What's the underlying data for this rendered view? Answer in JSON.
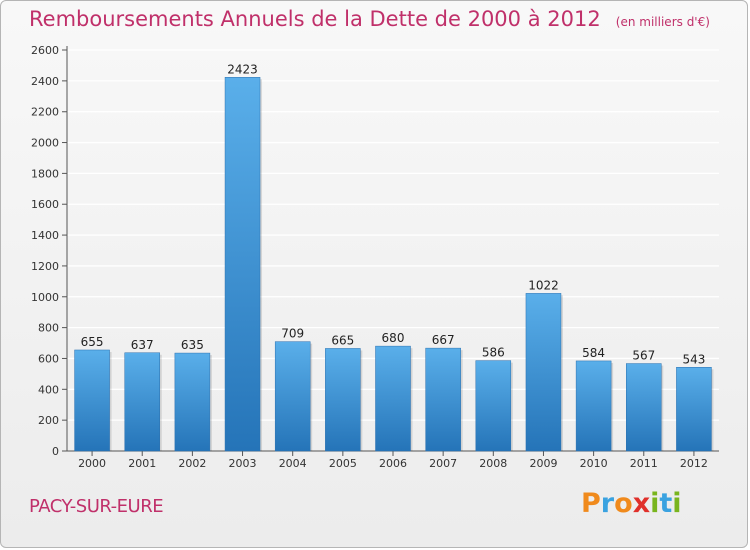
{
  "title": "Remboursements Annuels de la Dette de 2000 à 2012",
  "subtitle": "(en milliers d'€)",
  "commune": "PACY-SUR-EURE",
  "brand": {
    "letters": [
      "P",
      "r",
      "o",
      "x",
      "i",
      "t",
      "i"
    ],
    "colors": [
      "#f08a1c",
      "#3aa2e0",
      "#f08a1c",
      "#e0302a",
      "#79b51e",
      "#3aa2e0",
      "#79b51e"
    ]
  },
  "colors": {
    "bar_top": "#5aafea",
    "bar_bottom": "#2574b8",
    "title": "#c0306a",
    "grid": "#ffffff",
    "axis": "#555555"
  },
  "chart_data": {
    "type": "bar",
    "categories": [
      "2000",
      "2001",
      "2002",
      "2003",
      "2004",
      "2005",
      "2006",
      "2007",
      "2008",
      "2009",
      "2010",
      "2011",
      "2012"
    ],
    "values": [
      655,
      637,
      635,
      2423,
      709,
      665,
      680,
      667,
      586,
      1022,
      584,
      567,
      543
    ],
    "title": "Remboursements Annuels de la Dette de 2000 à 2012",
    "subtitle": "(en milliers d'€)",
    "xlabel": "",
    "ylabel": "",
    "ylim": [
      0,
      2600
    ],
    "yticks": [
      0,
      200,
      400,
      600,
      800,
      1000,
      1200,
      1400,
      1600,
      1800,
      2000,
      2200,
      2400,
      2600
    ],
    "grid": true,
    "data_labels": true
  }
}
